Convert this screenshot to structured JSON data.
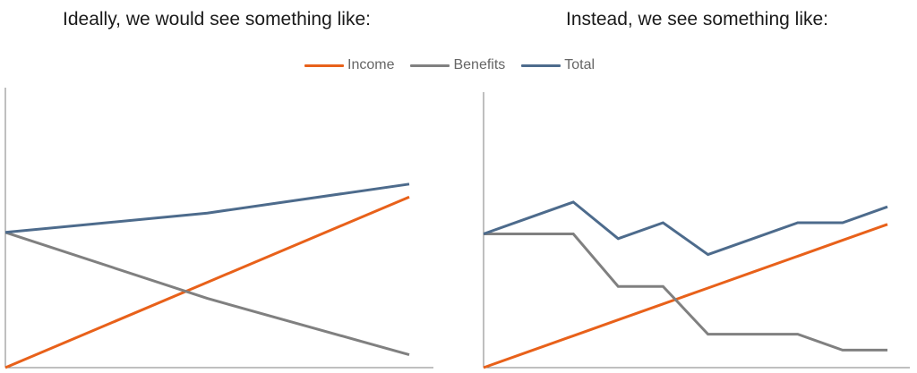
{
  "titles": {
    "left": "Ideally, we would see something like:",
    "right": "Instead, we see something like:"
  },
  "legend": [
    {
      "name": "Income",
      "color": "#E8611A"
    },
    {
      "name": "Benefits",
      "color": "#808080"
    },
    {
      "name": "Total",
      "color": "#4D6B8C"
    }
  ],
  "chart_data": [
    {
      "type": "line",
      "title": "Ideally, we would see something like:",
      "x": [
        0,
        0.5,
        1
      ],
      "ylim": [
        0,
        1
      ],
      "grid": false,
      "series": [
        {
          "name": "Income",
          "color": "#E8611A",
          "values": [
            0.0,
            0.53,
            1.06
          ]
        },
        {
          "name": "Benefits",
          "color": "#808080",
          "values": [
            0.84,
            0.43,
            0.08
          ]
        },
        {
          "name": "Total",
          "color": "#4D6B8C",
          "values": [
            0.84,
            0.96,
            1.14
          ]
        }
      ]
    },
    {
      "type": "line",
      "title": "Instead, we see something like:",
      "x": [
        0,
        1,
        2,
        3,
        4,
        5,
        6,
        7,
        8,
        9
      ],
      "ylim": [
        0,
        1
      ],
      "grid": false,
      "series": [
        {
          "name": "Income",
          "color": "#E8611A",
          "values": [
            0.0,
            0.1,
            0.2,
            0.3,
            0.4,
            0.5,
            0.6,
            0.7,
            0.8,
            0.9
          ]
        },
        {
          "name": "Benefits",
          "color": "#808080",
          "values": [
            0.84,
            0.84,
            0.84,
            0.51,
            0.51,
            0.21,
            0.21,
            0.21,
            0.11,
            0.11
          ]
        },
        {
          "name": "Total",
          "color": "#4D6B8C",
          "values": [
            0.84,
            0.94,
            1.04,
            0.81,
            0.91,
            0.71,
            0.81,
            0.91,
            0.91,
            1.01
          ]
        }
      ]
    }
  ]
}
